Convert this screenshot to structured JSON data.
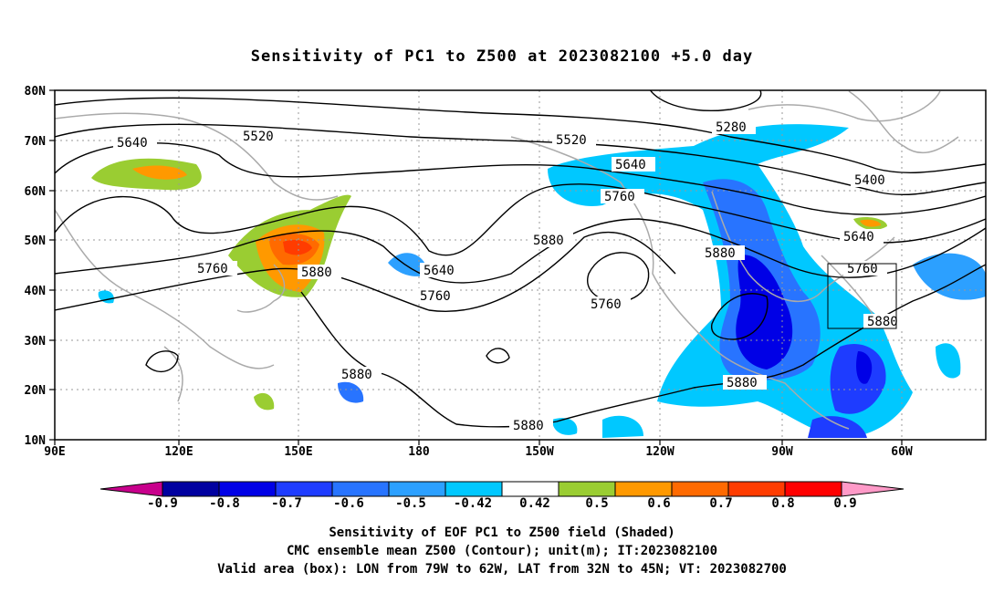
{
  "title": "Sensitivity of PC1 to Z500 at 2023082100 +5.0 day",
  "map": {
    "lat_labels": [
      "80N",
      "70N",
      "60N",
      "50N",
      "40N",
      "30N",
      "20N",
      "10N"
    ],
    "lon_labels": [
      "90E",
      "120E",
      "150E",
      "180",
      "150W",
      "120W",
      "90W",
      "60W"
    ],
    "lon_range": [
      "90E",
      "45W"
    ],
    "lat_range": [
      "10N",
      "80N"
    ],
    "contour_labels": [
      "5640",
      "5520",
      "5520",
      "5280",
      "5640",
      "5400",
      "5760",
      "5760",
      "5880",
      "5640",
      "5640",
      "5880",
      "5880",
      "5760",
      "5760",
      "5760",
      "5880",
      "5880",
      "5880",
      "5880"
    ],
    "valid_box": {
      "lon": [
        "79W",
        "62W"
      ],
      "lat": [
        "32N",
        "45N"
      ]
    }
  },
  "colorbar": {
    "labels": [
      "-0.9",
      "-0.8",
      "-0.7",
      "-0.6",
      "-0.5",
      "-0.42",
      "0.42",
      "0.5",
      "0.6",
      "0.7",
      "0.8",
      "0.9"
    ],
    "colors": [
      "#c8008c",
      "#0000a0",
      "#0000e6",
      "#1e3cff",
      "#2874ff",
      "#2ca0ff",
      "#00c8ff",
      "#ffffff",
      "#9acd32",
      "#ff9900",
      "#ff6a00",
      "#ff3c00",
      "#ff0000",
      "#ff9ac8"
    ]
  },
  "footer": {
    "line1": "Sensitivity of EOF PC1 to Z500 field (Shaded)",
    "line2": "CMC ensemble mean Z500 (Contour); unit(m); IT:2023082100",
    "line3": "Valid area (box): LON from 79W to 62W, LAT from 32N to 45N; VT: 2023082700"
  }
}
